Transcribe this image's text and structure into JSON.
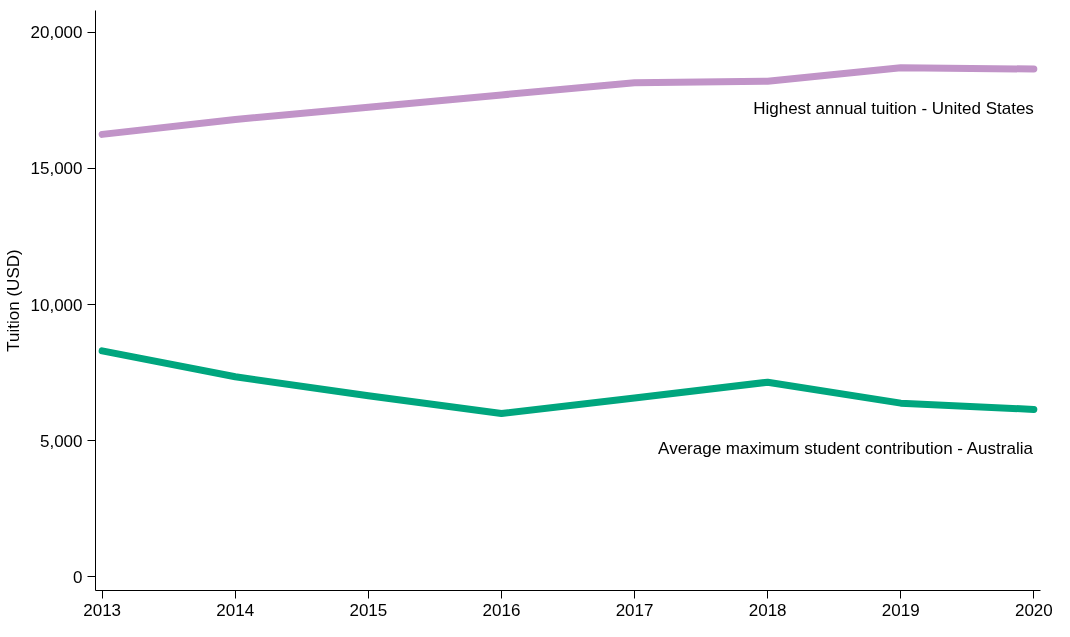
{
  "chart_data": {
    "type": "line",
    "ylabel": "Tuition (USD)",
    "x": [
      2013,
      2014,
      2015,
      2016,
      2017,
      2018,
      2019,
      2020
    ],
    "series": [
      {
        "name": "Highest annual tuition - United States",
        "color": "#c194c8",
        "values": [
          16250,
          16800,
          17250,
          17700,
          18150,
          18200,
          18700,
          18650
        ]
      },
      {
        "name": "Average maximum student contribution - Australia",
        "color": "#00a67e",
        "values": [
          8300,
          7350,
          6650,
          6000,
          6570,
          7150,
          6380,
          6150
        ]
      }
    ],
    "xlim": [
      2012.95,
      2020.05
    ],
    "xticks": [
      2013,
      2014,
      2015,
      2016,
      2017,
      2018,
      2019,
      2020
    ],
    "ylim": [
      -500,
      20800
    ],
    "yticks": [
      {
        "value": 0,
        "label": "0"
      },
      {
        "value": 5000,
        "label": "5,000"
      },
      {
        "value": 10000,
        "label": "10,000"
      },
      {
        "value": 15000,
        "label": "15,000"
      },
      {
        "value": 20000,
        "label": "20,000"
      }
    ],
    "grid": false,
    "marker": "none",
    "line_style": "solid"
  }
}
